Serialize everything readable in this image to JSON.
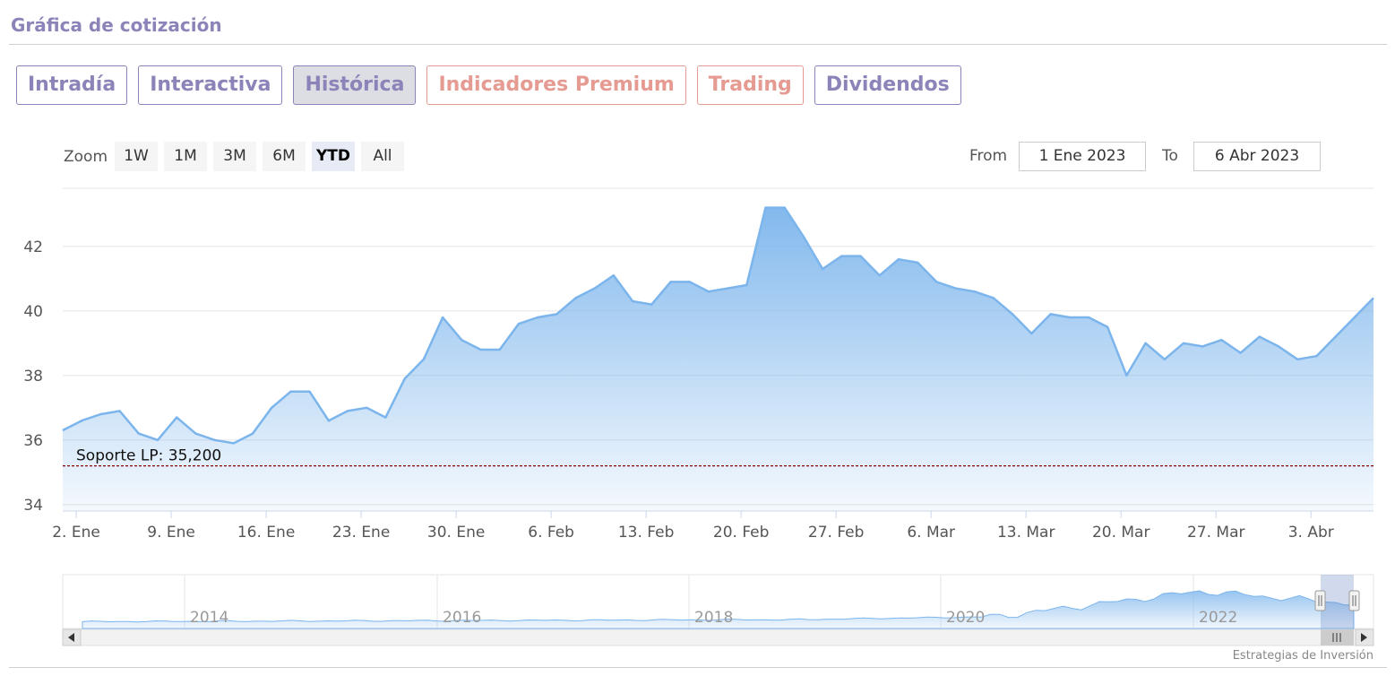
{
  "section": {
    "title": "Gráfica de cotización"
  },
  "tabs": [
    {
      "label": "Intradía",
      "state": "normal"
    },
    {
      "label": "Interactiva",
      "state": "normal"
    },
    {
      "label": "Histórica",
      "state": "active"
    },
    {
      "label": "Indicadores Premium",
      "state": "premium"
    },
    {
      "label": "Trading",
      "state": "premium"
    },
    {
      "label": "Dividendos",
      "state": "normal"
    }
  ],
  "zoom": {
    "label": "Zoom",
    "buttons": [
      "1W",
      "1M",
      "3M",
      "6M",
      "YTD",
      "All"
    ],
    "selected": "YTD"
  },
  "range": {
    "from_label": "From",
    "from_value": "1 Ene 2023",
    "to_label": "To",
    "to_value": "6 Abr 2023"
  },
  "navigator": {
    "year_labels": [
      "2014",
      "2016",
      "2018",
      "2020",
      "2022"
    ],
    "scroll_handle_icon": "grip-lines-icon",
    "left_arrow_icon": "arrow-left-icon",
    "right_arrow_icon": "arrow-right-icon"
  },
  "credit": "Estrategias de Inversión",
  "colors": {
    "accent": "#8c84b8",
    "premium": "#e59a92",
    "series": "#7cb5ec",
    "support_line": "#8b0000"
  },
  "chart_data": {
    "type": "area",
    "title": "",
    "xlabel": "",
    "ylabel": "",
    "ylim": [
      33.8,
      43.8
    ],
    "yticks": [
      34,
      36,
      38,
      40,
      42
    ],
    "x_tick_labels": [
      "2. Ene",
      "9. Ene",
      "16. Ene",
      "23. Ene",
      "30. Ene",
      "6. Feb",
      "13. Feb",
      "20. Feb",
      "27. Feb",
      "6. Mar",
      "13. Mar",
      "20. Mar",
      "27. Mar",
      "3. Abr"
    ],
    "grid": true,
    "series": [
      {
        "values": [
          36.3,
          36.6,
          36.8,
          36.9,
          36.2,
          36.0,
          36.7,
          36.2,
          36.0,
          35.9,
          36.2,
          37.0,
          37.5,
          37.5,
          36.6,
          36.9,
          37.0,
          36.7,
          37.9,
          38.5,
          39.8,
          39.1,
          38.8,
          38.8,
          39.6,
          39.8,
          39.9,
          40.4,
          40.7,
          41.1,
          40.3,
          40.2,
          40.9,
          40.9,
          40.6,
          40.7,
          40.8,
          43.2,
          43.2,
          42.3,
          41.3,
          41.7,
          41.7,
          41.1,
          41.6,
          41.5,
          40.9,
          40.7,
          40.6,
          40.4,
          39.9,
          39.3,
          39.9,
          39.8,
          39.8,
          39.5,
          38.0,
          39.0,
          38.5,
          39.0,
          38.9,
          39.1,
          38.7,
          39.2,
          38.9,
          38.5,
          38.6,
          39.2,
          39.8,
          40.4
        ]
      }
    ],
    "support": {
      "label": "Soporte LP: 35,200",
      "value": 35.2
    }
  }
}
